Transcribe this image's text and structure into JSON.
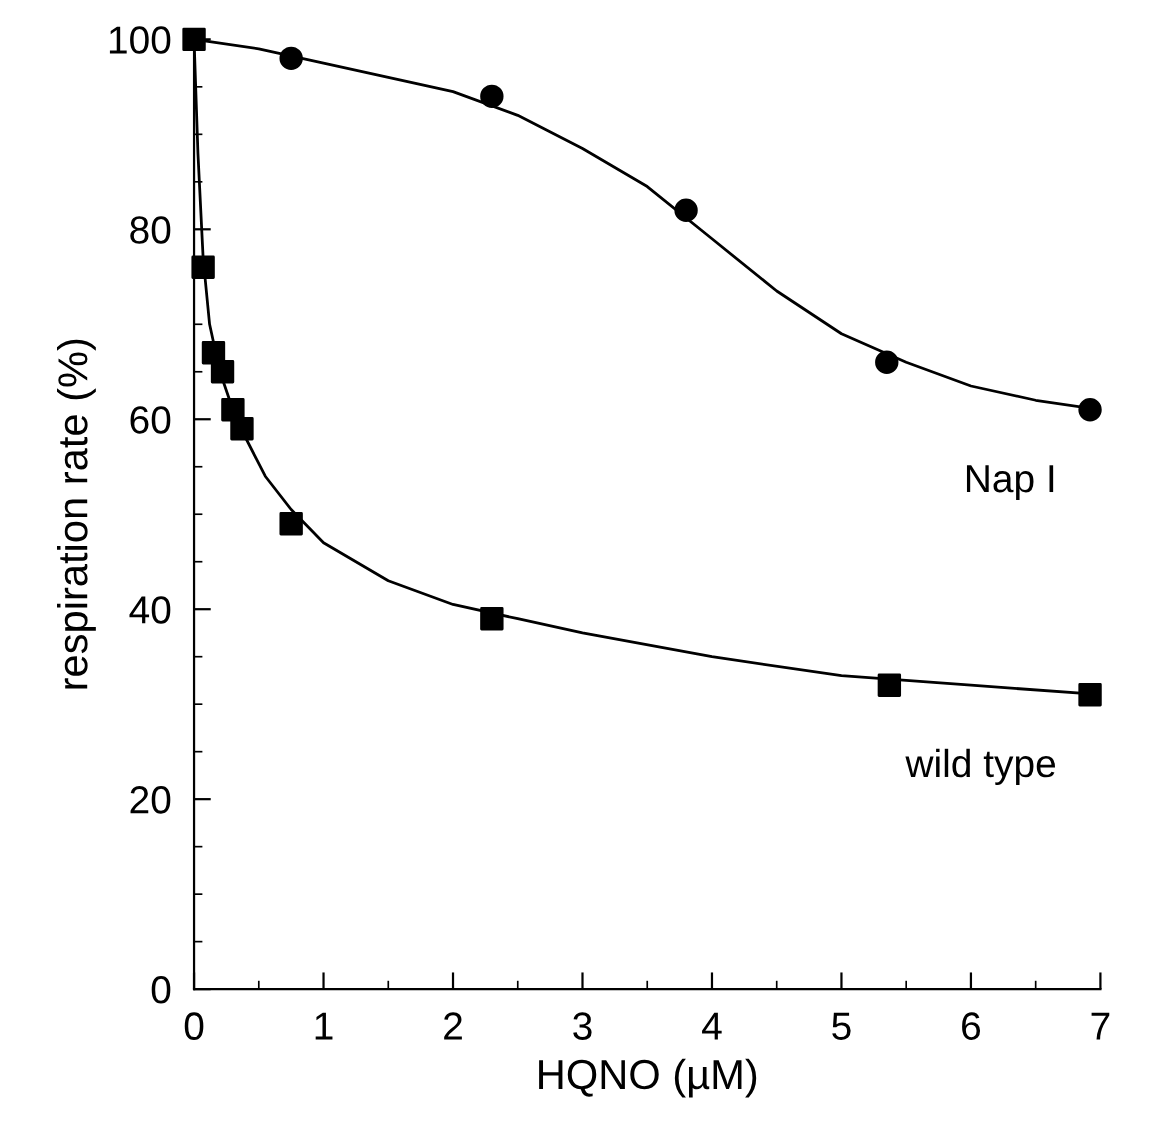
{
  "chart_data": {
    "type": "scatter",
    "xlabel": "HQNO (µM)",
    "ylabel": "respiration rate (%)",
    "xlim": [
      0,
      7
    ],
    "ylim": [
      0,
      100
    ],
    "xticks": [
      0,
      1,
      2,
      3,
      4,
      5,
      6,
      7
    ],
    "yticks": [
      0,
      20,
      40,
      60,
      80,
      100
    ],
    "grid": false,
    "legend": false,
    "series": [
      {
        "name": "Nap I",
        "marker": "circle",
        "color": "#000000",
        "x": [
          0.75,
          2.3,
          3.8,
          5.35,
          6.92
        ],
        "values": [
          98,
          94,
          82,
          66,
          61
        ]
      },
      {
        "name": "wild type",
        "marker": "square",
        "color": "#000000",
        "x": [
          0,
          0.07,
          0.15,
          0.22,
          0.3,
          0.37,
          0.75,
          2.3,
          5.37,
          6.92
        ],
        "values": [
          100,
          76,
          67,
          65,
          61,
          59,
          49,
          39,
          32,
          31
        ]
      },
      {
        "type": "line",
        "marker": "none",
        "line_style": "solid",
        "color": "#000000",
        "x": [
          0,
          0.5,
          1,
          1.5,
          2,
          2.5,
          3,
          3.5,
          4,
          4.5,
          5,
          5.5,
          6,
          6.5,
          7
        ],
        "values": [
          100,
          99,
          97.5,
          96,
          94.5,
          92,
          88.5,
          84.5,
          79,
          73.5,
          69,
          66,
          63.5,
          62,
          61
        ]
      },
      {
        "type": "line",
        "marker": "none",
        "line_style": "solid",
        "color": "#000000",
        "x": [
          0,
          0.03,
          0.07,
          0.12,
          0.2,
          0.3,
          0.4,
          0.55,
          0.75,
          1,
          1.5,
          2,
          2.5,
          3,
          4,
          5,
          6,
          7
        ],
        "values": [
          100,
          88,
          77,
          70,
          65,
          61,
          58,
          54,
          50.5,
          47,
          43,
          40.5,
          39,
          37.5,
          35,
          33,
          32,
          31
        ]
      }
    ]
  }
}
